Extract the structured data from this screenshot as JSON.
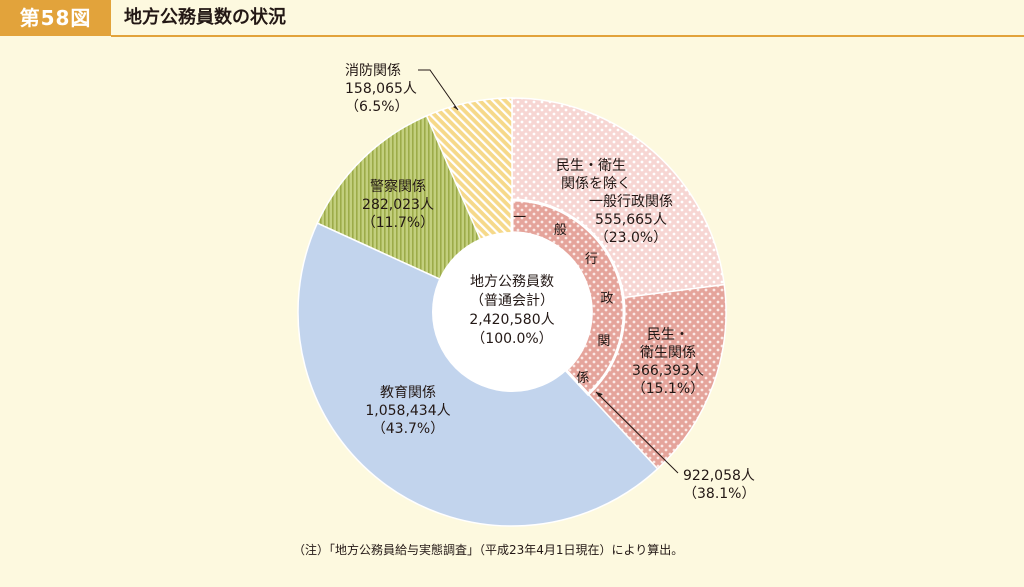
{
  "figure": {
    "number": "第58図",
    "title": "地方公務員数の状況",
    "note": "（注）「地方公務員給与実態調査」（平成23年4月1日現在）により算出。"
  },
  "colors": {
    "badge": "#e2a33b",
    "background": "#fdf9df",
    "general_admin_outer": "#f7d6d3",
    "welfare": "#e5a49b",
    "education": "#c2d4ed",
    "police": "#b7c46e",
    "fire": "#f3cd6a"
  },
  "chart_data": {
    "type": "pie",
    "title": "地方公務員数の状況",
    "center": {
      "lines": [
        "地方公務員数",
        "（普通会計）",
        "2,420,580人",
        "（100.0%）"
      ],
      "total": 2420580,
      "percent": 100.0
    },
    "outer_ring": [
      {
        "name": "民生・衛生関係を除く一般行政関係",
        "label_lines": [
          "民生・衛生",
          "関係を除く",
          "一般行政関係"
        ],
        "value": 555665,
        "value_label": "555,665人",
        "percent": 23.0,
        "percent_label": "（23.0%）"
      },
      {
        "name": "民生・衛生関係",
        "label_lines": [
          "民生・",
          "衛生関係"
        ],
        "value": 366393,
        "value_label": "366,393人",
        "percent": 15.1,
        "percent_label": "（15.1%）"
      },
      {
        "name": "教育関係",
        "label_lines": [
          "教育関係"
        ],
        "value": 1058434,
        "value_label": "1,058,434人",
        "percent": 43.7,
        "percent_label": "（43.7%）"
      },
      {
        "name": "警察関係",
        "label_lines": [
          "警察関係"
        ],
        "value": 282023,
        "value_label": "282,023人",
        "percent": 11.7,
        "percent_label": "（11.7%）"
      },
      {
        "name": "消防関係",
        "label_lines": [
          "消防関係"
        ],
        "value": 158065,
        "value_label": "158,065人",
        "percent": 6.5,
        "percent_label": "（6.5%）"
      }
    ],
    "inner_ring": {
      "name": "一般行政関係",
      "vertical_label": [
        "一",
        "般",
        "行",
        "政",
        "関",
        "係"
      ],
      "value": 922058,
      "value_label": "922,058人",
      "percent": 38.1,
      "percent_label": "（38.1%）"
    }
  }
}
